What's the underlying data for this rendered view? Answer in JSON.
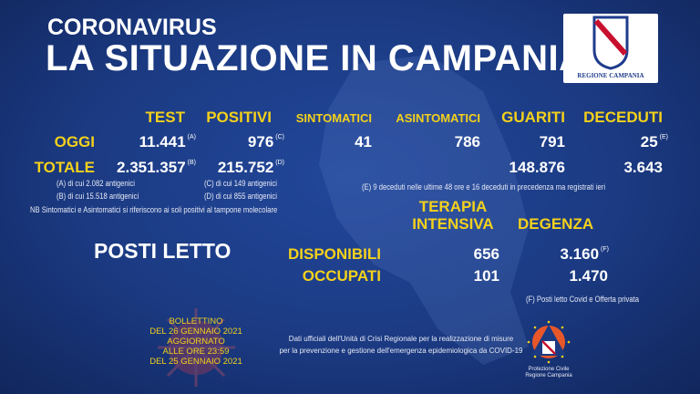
{
  "header": {
    "subtitle": "CORONAVIRUS",
    "title": "LA SITUAZIONE IN CAMPANIA",
    "logo_text": "REGIONE CAMPANIA"
  },
  "columns": [
    "TEST",
    "POSITIVI",
    "SINTOMATICI",
    "ASINTOMATICI",
    "GUARITI",
    "DECEDUTI"
  ],
  "oggi": {
    "label": "OGGI",
    "test": "11.441",
    "test_note": "(A)",
    "positivi": "976",
    "positivi_note": "(C)",
    "sintomatici": "41",
    "asintomatici": "786",
    "guariti": "791",
    "deceduti": "25",
    "deceduti_note": "(E)"
  },
  "totale": {
    "label": "TOTALE",
    "test": "2.351.357",
    "test_note": "(B)",
    "positivi": "215.752",
    "positivi_note": "(D)",
    "guariti": "148.876",
    "deceduti": "3.643"
  },
  "notes": {
    "a": "(A) di cui 2.082 antigenici",
    "b": "(B) di cui 15.518 antigenici",
    "c": "(C) di cui 149 antigenici",
    "d": "(D) di cui 855 antigenici",
    "nb": "NB Sintomatici e Asintomatici si riferiscono ai soli positivi al tampone molecolare",
    "e": "(E) 9 deceduti nelle ultime 48 ore e 16 deceduti in precedenza ma registrati ieri",
    "f": "(F) Posti letto Covid e Offerta privata"
  },
  "posti": {
    "title": "POSTI LETTO",
    "col1_line1": "TERAPIA",
    "col1_line2": "INTENSIVA",
    "col2": "DEGENZA",
    "disponibili_label": "DISPONIBILI",
    "disp_ti": "656",
    "disp_deg": "3.160",
    "disp_deg_note": "(F)",
    "occupati_label": "OCCUPATI",
    "occ_ti": "101",
    "occ_deg": "1.470"
  },
  "bulletin": [
    "BOLLETTINO",
    "DEL 26 GENNAIO 2021",
    "AGGIORNATO",
    "ALLE ORE 23:59",
    "DEL 25 GENNAIO 2021"
  ],
  "footer": {
    "line1": "Dati ufficiali dell'Unità di Crisi Regionale per la realizzazione di misure",
    "line2": "per la prevenzione e gestione dell'emergenza epidemiologica da COVID-19",
    "pc_line1": "Protezione Civile",
    "pc_line2": "Regione Campania"
  },
  "colors": {
    "background": "#1b3a82",
    "accent": "#f4d11b",
    "text": "#ffffff"
  }
}
